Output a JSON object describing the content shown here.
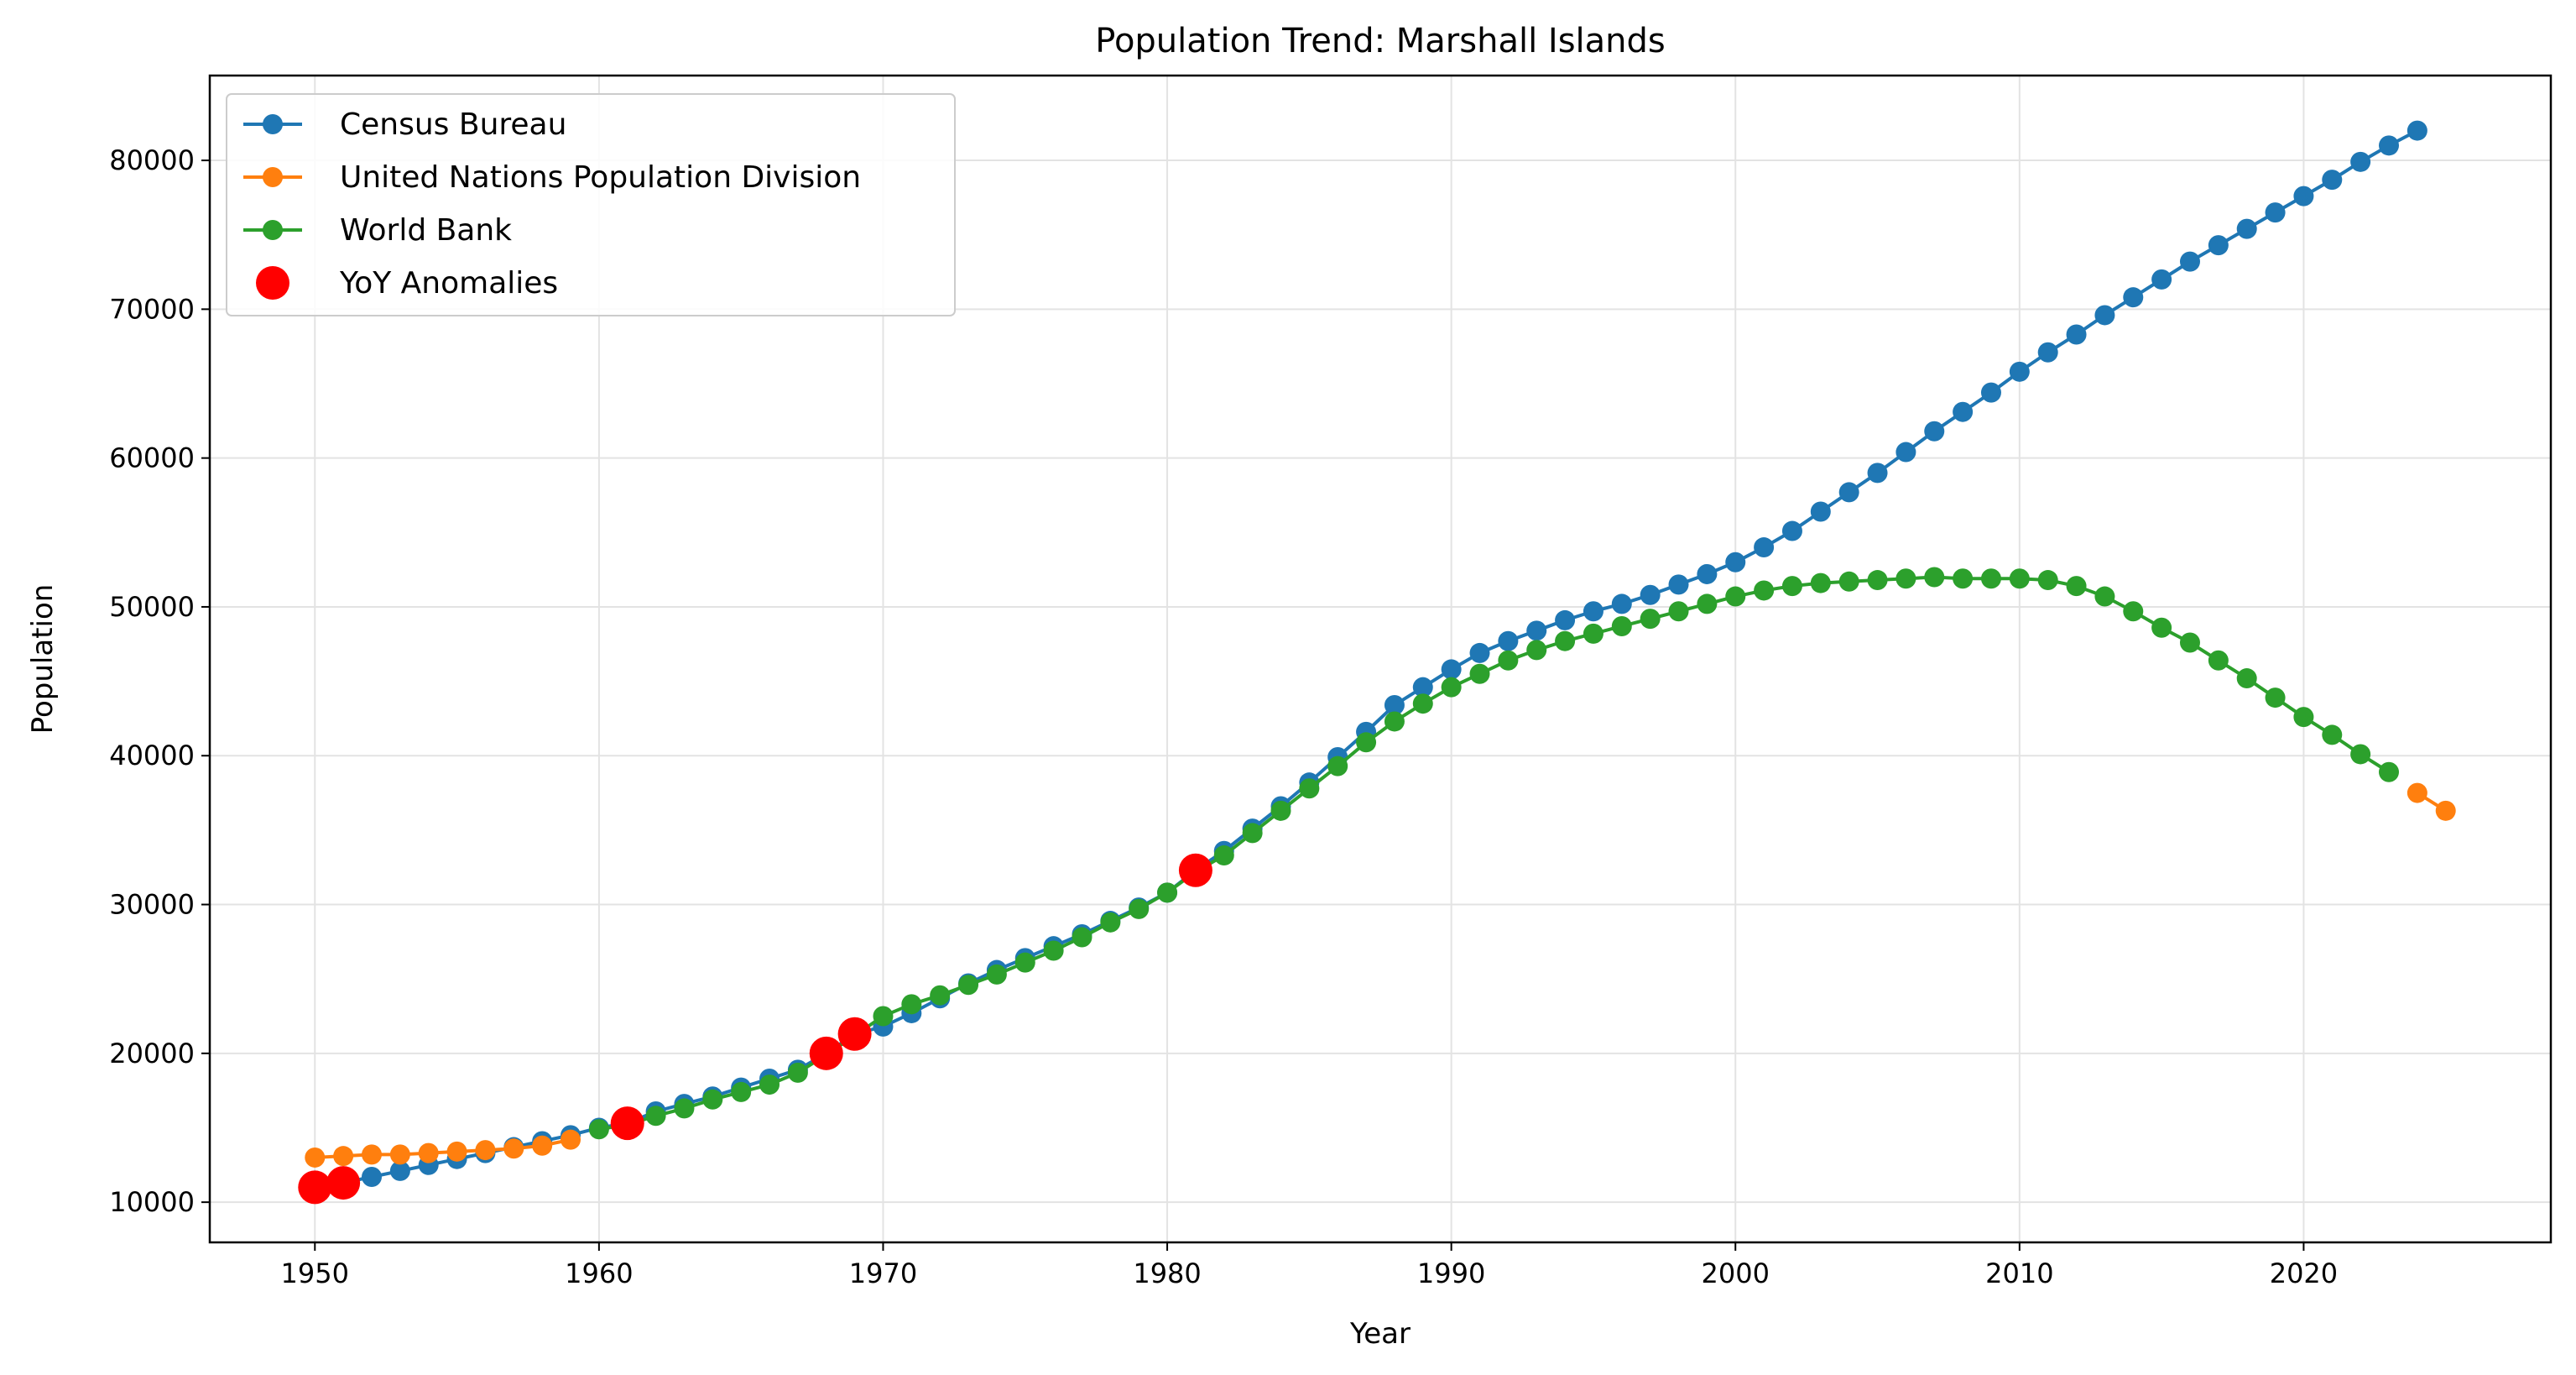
{
  "chart_data": {
    "type": "line",
    "title": "Population Trend: Marshall Islands",
    "xlabel": "Year",
    "ylabel": "Population",
    "xlim": [
      1946.3,
      2028.7
    ],
    "ylim": [
      7300,
      85700
    ],
    "xticks": [
      1950,
      1960,
      1970,
      1980,
      1990,
      2000,
      2010,
      2020
    ],
    "yticks": [
      10000,
      20000,
      30000,
      40000,
      50000,
      60000,
      70000,
      80000
    ],
    "grid": true,
    "legend_position": "upper-left",
    "series": [
      {
        "name": "Census Bureau",
        "color": "#1f77b4",
        "x": [
          1950,
          1951,
          1952,
          1953,
          1954,
          1955,
          1956,
          1957,
          1958,
          1959,
          1960,
          1961,
          1962,
          1963,
          1964,
          1965,
          1966,
          1967,
          1968,
          1969,
          1970,
          1971,
          1972,
          1973,
          1974,
          1975,
          1976,
          1977,
          1978,
          1979,
          1980,
          1981,
          1982,
          1983,
          1984,
          1985,
          1986,
          1987,
          1988,
          1989,
          1990,
          1991,
          1992,
          1993,
          1994,
          1995,
          1996,
          1997,
          1998,
          1999,
          2000,
          2001,
          2002,
          2003,
          2004,
          2005,
          2006,
          2007,
          2008,
          2009,
          2010,
          2011,
          2012,
          2013,
          2014,
          2015,
          2016,
          2017,
          2018,
          2019,
          2020,
          2021,
          2022,
          2023,
          2024
        ],
        "y": [
          11000,
          11300,
          11700,
          12100,
          12500,
          12900,
          13300,
          13700,
          14100,
          14500,
          15000,
          15300,
          16100,
          16600,
          17100,
          17700,
          18300,
          18900,
          20000,
          21300,
          21800,
          22700,
          23700,
          24700,
          25600,
          26400,
          27200,
          28000,
          28900,
          29800,
          30800,
          32300,
          33600,
          35100,
          36600,
          38200,
          39900,
          41600,
          43400,
          44600,
          45800,
          46900,
          47700,
          48400,
          49100,
          49700,
          50200,
          50800,
          51500,
          52200,
          53000,
          54000,
          55100,
          56400,
          57700,
          59000,
          60400,
          61800,
          63100,
          64400,
          65800,
          67100,
          68300,
          69600,
          70800,
          72000,
          73200,
          74300,
          75400,
          76500,
          77600,
          78700,
          79900,
          81000,
          82000
        ]
      },
      {
        "name": "United Nations Population Division",
        "color": "#ff7f0e",
        "x": [
          1950,
          1951,
          1952,
          1953,
          1954,
          1955,
          1956,
          1957,
          1958,
          1959,
          2024,
          2025
        ],
        "y": [
          13000,
          13100,
          13200,
          13200,
          13300,
          13400,
          13500,
          13600,
          13800,
          14200,
          37500,
          36300
        ]
      },
      {
        "name": "World Bank",
        "color": "#2ca02c",
        "x": [
          1960,
          1961,
          1962,
          1963,
          1964,
          1965,
          1966,
          1967,
          1968,
          1969,
          1970,
          1971,
          1972,
          1973,
          1974,
          1975,
          1976,
          1977,
          1978,
          1979,
          1980,
          1981,
          1982,
          1983,
          1984,
          1985,
          1986,
          1987,
          1988,
          1989,
          1990,
          1991,
          1992,
          1993,
          1994,
          1995,
          1996,
          1997,
          1998,
          1999,
          2000,
          2001,
          2002,
          2003,
          2004,
          2005,
          2006,
          2007,
          2008,
          2009,
          2010,
          2011,
          2012,
          2013,
          2014,
          2015,
          2016,
          2017,
          2018,
          2019,
          2020,
          2021,
          2022,
          2023
        ],
        "y": [
          14900,
          15200,
          15800,
          16300,
          16900,
          17400,
          17900,
          18700,
          19900,
          21200,
          22500,
          23300,
          23900,
          24600,
          25300,
          26100,
          26900,
          27800,
          28800,
          29700,
          30800,
          32200,
          33300,
          34800,
          36300,
          37800,
          39300,
          40900,
          42300,
          43500,
          44600,
          45500,
          46400,
          47100,
          47700,
          48200,
          48700,
          49200,
          49700,
          50200,
          50700,
          51100,
          51400,
          51600,
          51700,
          51800,
          51900,
          52000,
          51900,
          51900,
          51900,
          51800,
          51400,
          50700,
          49700,
          48600,
          47600,
          46400,
          45200,
          43900,
          42600,
          41400,
          40100,
          38900
        ]
      },
      {
        "name": "YoY Anomalies",
        "color": "#ff0000",
        "marker_only": true,
        "x": [
          1950,
          1951,
          1961,
          1968,
          1969,
          1981
        ],
        "y": [
          11000,
          11300,
          15300,
          20000,
          21300,
          32300
        ]
      }
    ]
  }
}
